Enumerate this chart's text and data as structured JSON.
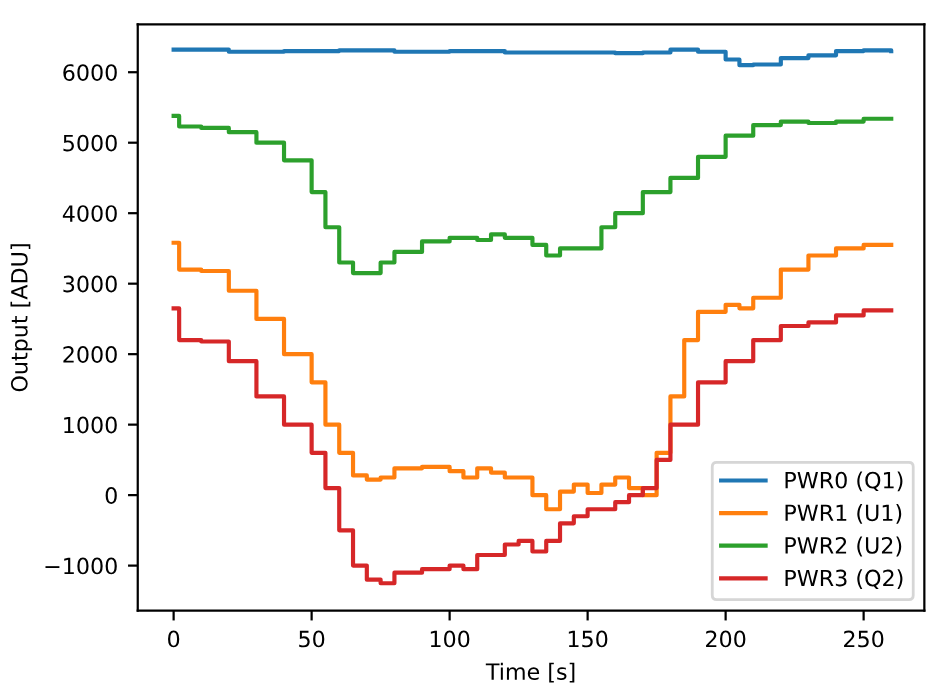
{
  "chart_data": {
    "type": "step",
    "xlabel": "Time [s]",
    "ylabel": "Output [ADU]",
    "xlim": [
      -13,
      272
    ],
    "ylim": [
      -1640,
      6680
    ],
    "xticks": [
      0,
      50,
      100,
      150,
      200,
      250
    ],
    "yticks": [
      {
        "value": -1000,
        "label": "−1000"
      },
      0,
      1000,
      2000,
      3000,
      4000,
      5000,
      6000
    ],
    "grid": false,
    "legend": "bottom right",
    "series": [
      {
        "name": "PWR0 (Q1)",
        "color": "#1f77b4",
        "x": [
          0,
          20,
          40,
          60,
          80,
          100,
          120,
          140,
          160,
          170,
          180,
          190,
          200,
          205,
          210,
          220,
          230,
          240,
          250,
          260
        ],
        "values": [
          6320,
          6290,
          6300,
          6310,
          6290,
          6300,
          6280,
          6280,
          6270,
          6280,
          6320,
          6290,
          6180,
          6100,
          6110,
          6200,
          6240,
          6300,
          6310,
          6300
        ]
      },
      {
        "name": "PWR1 (U1)",
        "color": "#ff7f0e",
        "x": [
          0,
          2,
          10,
          20,
          30,
          40,
          50,
          55,
          60,
          65,
          70,
          75,
          80,
          90,
          100,
          105,
          110,
          115,
          120,
          130,
          135,
          140,
          145,
          150,
          155,
          160,
          165,
          170,
          175,
          180,
          185,
          190,
          200,
          205,
          210,
          220,
          230,
          240,
          250,
          260
        ],
        "values": [
          3580,
          3200,
          3180,
          2900,
          2500,
          2000,
          1600,
          1000,
          600,
          280,
          220,
          250,
          380,
          400,
          340,
          250,
          380,
          320,
          250,
          0,
          -200,
          50,
          150,
          30,
          150,
          250,
          100,
          0,
          600,
          1400,
          2200,
          2600,
          2700,
          2650,
          2800,
          3200,
          3400,
          3500,
          3550,
          3550
        ]
      },
      {
        "name": "PWR2 (U2)",
        "color": "#2ca02c",
        "x": [
          0,
          2,
          10,
          20,
          30,
          40,
          50,
          55,
          60,
          65,
          70,
          75,
          80,
          90,
          100,
          110,
          115,
          120,
          130,
          135,
          140,
          150,
          155,
          160,
          170,
          180,
          190,
          200,
          210,
          220,
          230,
          240,
          250,
          260
        ],
        "values": [
          5380,
          5230,
          5210,
          5150,
          5000,
          4750,
          4300,
          3800,
          3300,
          3150,
          3150,
          3300,
          3450,
          3600,
          3650,
          3620,
          3700,
          3650,
          3550,
          3400,
          3500,
          3500,
          3800,
          4000,
          4300,
          4500,
          4800,
          5100,
          5250,
          5300,
          5280,
          5300,
          5340,
          5340
        ]
      },
      {
        "name": "PWR3 (Q2)",
        "color": "#d62728",
        "x": [
          0,
          2,
          10,
          20,
          30,
          40,
          50,
          55,
          60,
          65,
          70,
          75,
          80,
          90,
          100,
          105,
          110,
          120,
          125,
          130,
          135,
          140,
          145,
          150,
          160,
          165,
          170,
          175,
          180,
          190,
          200,
          210,
          220,
          230,
          240,
          250,
          260
        ],
        "values": [
          2650,
          2200,
          2180,
          1900,
          1400,
          1000,
          600,
          100,
          -500,
          -1000,
          -1200,
          -1250,
          -1100,
          -1050,
          -1000,
          -1050,
          -850,
          -700,
          -650,
          -800,
          -650,
          -400,
          -300,
          -200,
          -100,
          0,
          100,
          500,
          1000,
          1600,
          1900,
          2200,
          2400,
          2450,
          2550,
          2620,
          2620
        ]
      }
    ]
  }
}
